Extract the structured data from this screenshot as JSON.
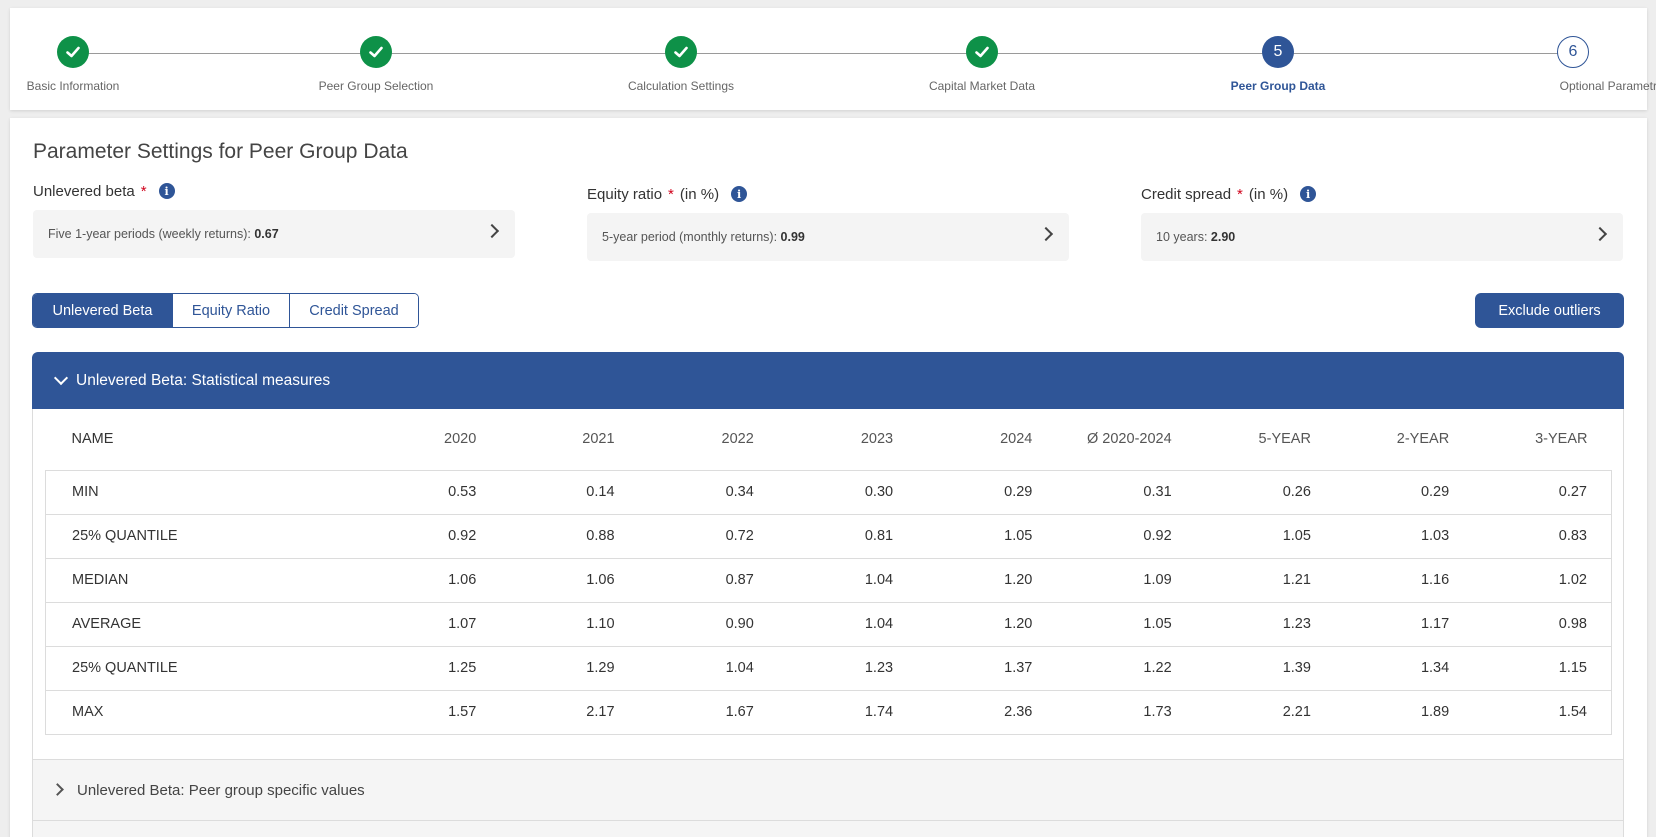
{
  "stepper": {
    "steps": [
      {
        "label": "Basic Information",
        "state": "done",
        "icon": "check-icon"
      },
      {
        "label": "Peer Group Selection",
        "state": "done",
        "icon": "check-icon"
      },
      {
        "label": "Calculation Settings",
        "state": "done",
        "icon": "check-icon"
      },
      {
        "label": "Capital Market Data",
        "state": "done",
        "icon": "check-icon"
      },
      {
        "label": "Peer Group Data",
        "state": "active",
        "number": "5"
      },
      {
        "label": "Optional Parametrs",
        "state": "todo",
        "number": "6"
      }
    ]
  },
  "page": {
    "title": "Parameter Settings for Peer Group Data"
  },
  "params": {
    "unlevered_beta": {
      "label": "Unlevered beta",
      "required": "*",
      "unit": "",
      "value_prefix": "Five 1-year periods (weekly returns): ",
      "value": "0.67"
    },
    "equity_ratio": {
      "label": "Equity ratio",
      "required": "*",
      "unit": "(in %)",
      "value_prefix": "5-year period (monthly returns): ",
      "value": "0.99"
    },
    "credit_spread": {
      "label": "Credit spread",
      "required": "*",
      "unit": "(in %)",
      "value_prefix": "10 years: ",
      "value": "2.90"
    }
  },
  "tabs": {
    "unlevered_beta": "Unlevered Beta",
    "equity_ratio": "Equity Ratio",
    "credit_spread": "Credit Spread"
  },
  "buttons": {
    "exclude_outliers": "Exclude outliers"
  },
  "accordion": {
    "stat_title": "Unlevered Beta: Statistical measures",
    "peer_title": "Unlevered Beta: Peer group specific values"
  },
  "table": {
    "headers": [
      "NAME",
      "2020",
      "2021",
      "2022",
      "2023",
      "2024",
      "Ø 2020-2024",
      "5-YEAR",
      "2-YEAR",
      "3-YEAR"
    ],
    "rows": [
      [
        "MIN",
        "0.53",
        "0.14",
        "0.34",
        "0.30",
        "0.29",
        "0.31",
        "0.26",
        "0.29",
        "0.27"
      ],
      [
        "25% QUANTILE",
        "0.92",
        "0.88",
        "0.72",
        "0.81",
        "1.05",
        "0.92",
        "1.05",
        "1.03",
        "0.83"
      ],
      [
        "MEDIAN",
        "1.06",
        "1.06",
        "0.87",
        "1.04",
        "1.20",
        "1.09",
        "1.21",
        "1.16",
        "1.02"
      ],
      [
        "AVERAGE",
        "1.07",
        "1.10",
        "0.90",
        "1.04",
        "1.20",
        "1.05",
        "1.23",
        "1.17",
        "0.98"
      ],
      [
        "25% QUANTILE",
        "1.25",
        "1.29",
        "1.04",
        "1.23",
        "1.37",
        "1.22",
        "1.39",
        "1.34",
        "1.15"
      ],
      [
        "MAX",
        "1.57",
        "2.17",
        "1.67",
        "1.74",
        "2.36",
        "1.73",
        "2.21",
        "1.89",
        "1.54"
      ]
    ]
  },
  "colors": {
    "primary": "#2f5597",
    "success": "#0e9148",
    "required": "#d0021b"
  }
}
